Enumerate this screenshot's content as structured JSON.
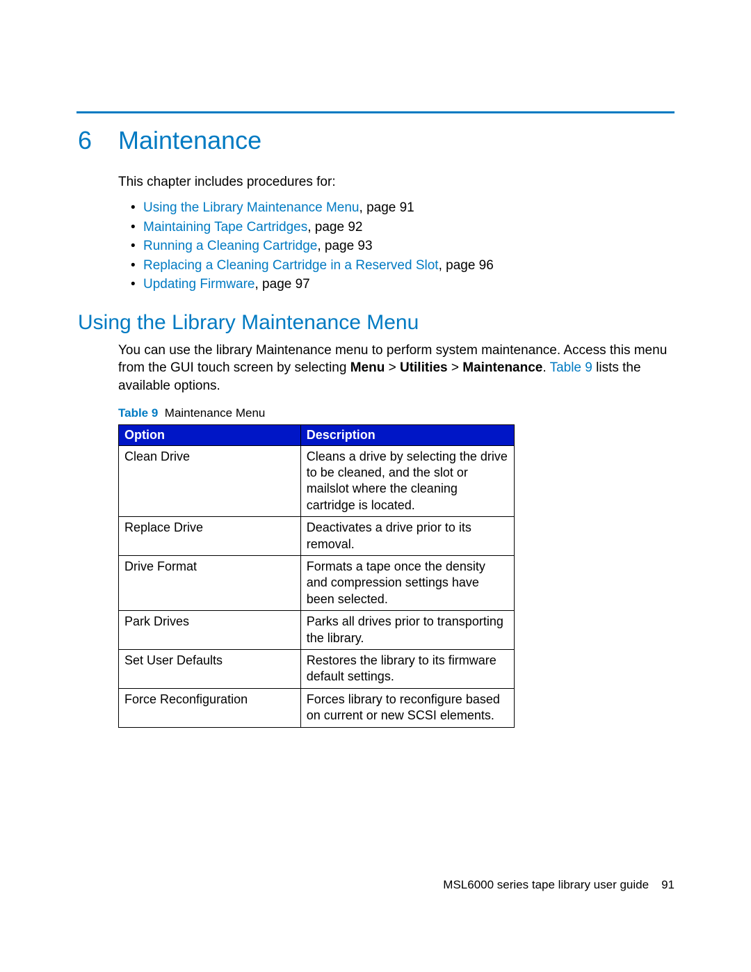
{
  "colors": {
    "accent": "#007ac2",
    "table_header_bg": "#0016c6",
    "table_header_fg": "#ffffff",
    "text": "#000000",
    "page_bg": "#ffffff"
  },
  "chapter": {
    "number": "6",
    "title": "Maintenance"
  },
  "intro": "This chapter includes procedures for:",
  "toc": [
    {
      "link": "Using the Library Maintenance Menu",
      "suffix": ", page 91"
    },
    {
      "link": "Maintaining Tape Cartridges",
      "suffix": ", page 92"
    },
    {
      "link": "Running a Cleaning Cartridge",
      "suffix": ", page 93"
    },
    {
      "link": "Replacing a Cleaning Cartridge in a Reserved Slot",
      "suffix": ", page 96"
    },
    {
      "link": "Updating Firmware",
      "suffix": ", page 97"
    }
  ],
  "section": {
    "heading": "Using the Library Maintenance Menu",
    "para_pre": "You can use the library Maintenance menu to perform system maintenance. Access this menu from the GUI touch screen by selecting ",
    "menu_path": [
      "Menu",
      "Utilities",
      "Maintenance"
    ],
    "para_mid": ". ",
    "table_ref": "Table 9",
    "para_post": " lists the available options."
  },
  "table": {
    "caption_label": "Table 9",
    "caption_text": "Maintenance Menu",
    "columns": [
      "Option",
      "Description"
    ],
    "rows": [
      [
        "Clean Drive",
        "Cleans a drive by selecting the drive to be cleaned, and the slot or mailslot where the cleaning cartridge is located."
      ],
      [
        "Replace Drive",
        "Deactivates a drive prior to its removal."
      ],
      [
        "Drive Format",
        "Formats a tape once the density and compression settings have been selected."
      ],
      [
        "Park Drives",
        "Parks all drives prior to transporting the library."
      ],
      [
        "Set User Defaults",
        "Restores the library to its firmware default settings."
      ],
      [
        "Force Reconfiguration",
        "Forces library to reconfigure based on current or new SCSI elements."
      ]
    ]
  },
  "footer": {
    "text": "MSL6000 series tape library user guide",
    "page": "91"
  }
}
